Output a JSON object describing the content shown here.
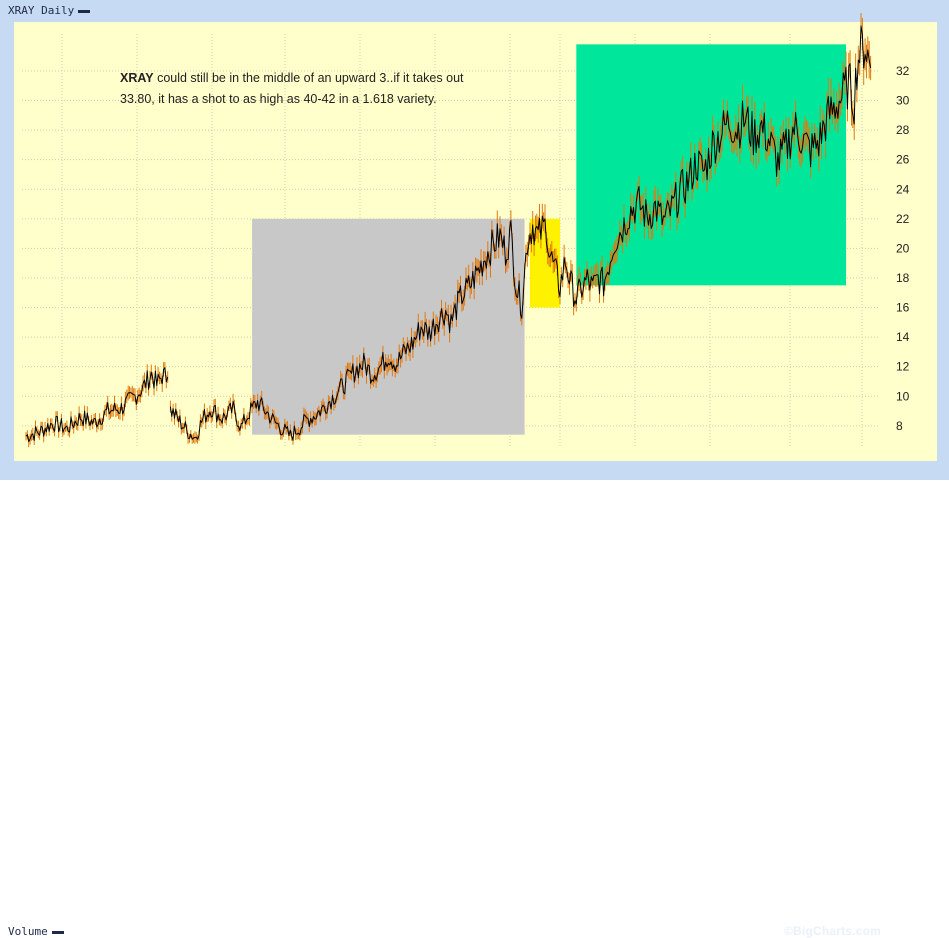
{
  "header": {
    "title": "XRAY Daily"
  },
  "footer": {
    "volume_label": "Volume",
    "watermark": "©BigCharts.com"
  },
  "annotation": {
    "ticker": "XRAY",
    "text": " could still be in the middle of an upward 3..if it takes out 33.80, it has a shot to as high as 40-42 in a 1.618 variety."
  },
  "colors": {
    "background": "#ffffcc",
    "frame": "#c6dbf3",
    "price_line": "#000000",
    "price_up": "#e07a10",
    "box_gray": "#c8c8c8",
    "box_yellow": "#fff200",
    "box_green": "#00e69a"
  },
  "chart_data": {
    "type": "line",
    "title": "XRAY Daily",
    "ylim": [
      6.5,
      34.5
    ],
    "y_axis_position": "right",
    "grid": true,
    "y_ticks": [
      8,
      10,
      12,
      14,
      16,
      18,
      20,
      22,
      24,
      26,
      28,
      30,
      32
    ],
    "x_index_range": [
      0,
      300
    ],
    "gap": {
      "after_index": 52,
      "resume_index": 53
    },
    "series": [
      {
        "values": [
          [
            0,
            7.3
          ],
          [
            5,
            7.6
          ],
          [
            10,
            8.2
          ],
          [
            15,
            7.8
          ],
          [
            20,
            8.6
          ],
          [
            25,
            8.2
          ],
          [
            30,
            9.0
          ],
          [
            35,
            9.2
          ],
          [
            40,
            10.0
          ],
          [
            43,
            10.6
          ],
          [
            46,
            11.5
          ],
          [
            48,
            10.8
          ],
          [
            50,
            11.4
          ],
          [
            52,
            11.3
          ],
          [
            53,
            9.1
          ],
          [
            56,
            8.4
          ],
          [
            59,
            7.7
          ],
          [
            62,
            7.2
          ],
          [
            65,
            8.5
          ],
          [
            68,
            9.2
          ],
          [
            72,
            8.5
          ],
          [
            76,
            9.1
          ],
          [
            79,
            7.9
          ],
          [
            82,
            8.9
          ],
          [
            85,
            9.6
          ],
          [
            88,
            9.0
          ],
          [
            91,
            8.3
          ],
          [
            94,
            7.8
          ],
          [
            97,
            7.3
          ],
          [
            100,
            7.8
          ],
          [
            103,
            8.4
          ],
          [
            106,
            8.7
          ],
          [
            109,
            9.2
          ],
          [
            112,
            9.8
          ],
          [
            115,
            10.4
          ],
          [
            118,
            11.1
          ],
          [
            121,
            11.8
          ],
          [
            124,
            12.2
          ],
          [
            127,
            11.5
          ],
          [
            130,
            12.0
          ],
          [
            133,
            12.8
          ],
          [
            136,
            12.2
          ],
          [
            139,
            13.0
          ],
          [
            142,
            13.6
          ],
          [
            145,
            14.7
          ],
          [
            148,
            14.3
          ],
          [
            151,
            15.2
          ],
          [
            154,
            15.8
          ],
          [
            156,
            15.0
          ],
          [
            158,
            16.0
          ],
          [
            160,
            16.8
          ],
          [
            163,
            17.5
          ],
          [
            166,
            18.5
          ],
          [
            169,
            19.6
          ],
          [
            172,
            20.4
          ],
          [
            174,
            20.8
          ],
          [
            176,
            19.8
          ],
          [
            178,
            21.0
          ],
          [
            180,
            17.4
          ],
          [
            182,
            16.2
          ],
          [
            184,
            20.5
          ],
          [
            186,
            21.6
          ],
          [
            188,
            20.8
          ],
          [
            190,
            21.4
          ],
          [
            191,
            21.6
          ],
          [
            192,
            19.8
          ],
          [
            194,
            18.6
          ],
          [
            196,
            17.4
          ],
          [
            198,
            19.2
          ],
          [
            200,
            17.6
          ],
          [
            202,
            16.6
          ],
          [
            204,
            17.3
          ],
          [
            206,
            17.9
          ],
          [
            208,
            17.3
          ],
          [
            210,
            18.0
          ],
          [
            212,
            17.6
          ],
          [
            214,
            19.0
          ],
          [
            216,
            20.5
          ],
          [
            219,
            21.4
          ],
          [
            222,
            22.6
          ],
          [
            225,
            23.0
          ],
          [
            228,
            22.1
          ],
          [
            231,
            22.8
          ],
          [
            234,
            21.8
          ],
          [
            237,
            22.6
          ],
          [
            240,
            23.8
          ],
          [
            243,
            24.5
          ],
          [
            246,
            25.8
          ],
          [
            249,
            25.2
          ],
          [
            252,
            27.0
          ],
          [
            255,
            27.8
          ],
          [
            258,
            28.6
          ],
          [
            261,
            28.1
          ],
          [
            264,
            28.8
          ],
          [
            267,
            27.6
          ],
          [
            270,
            28.2
          ],
          [
            273,
            27.2
          ],
          [
            276,
            25.8
          ],
          [
            279,
            26.8
          ],
          [
            282,
            28.2
          ],
          [
            285,
            27.4
          ],
          [
            288,
            26.6
          ],
          [
            291,
            27.2
          ],
          [
            294,
            28.8
          ],
          [
            297,
            29.6
          ],
          [
            300,
            30.4
          ],
          [
            302,
            31.2
          ],
          [
            304,
            30.0
          ],
          [
            305,
            32.4
          ],
          [
            306,
            33.3
          ],
          [
            308,
            33.8
          ],
          [
            310,
            32.2
          ]
        ]
      }
    ],
    "boxes": [
      {
        "name": "gray-box",
        "x_range": [
          83,
          183
        ],
        "y_range": [
          7.4,
          22.0
        ],
        "color": "#c8c8c8"
      },
      {
        "name": "yellow-box",
        "x_range": [
          185,
          196
        ],
        "y_range": [
          16.0,
          22.0
        ],
        "color": "#fff200"
      },
      {
        "name": "green-box",
        "x_range": [
          202,
          301
        ],
        "y_range": [
          17.5,
          33.8
        ],
        "color": "#00e69a"
      }
    ]
  }
}
